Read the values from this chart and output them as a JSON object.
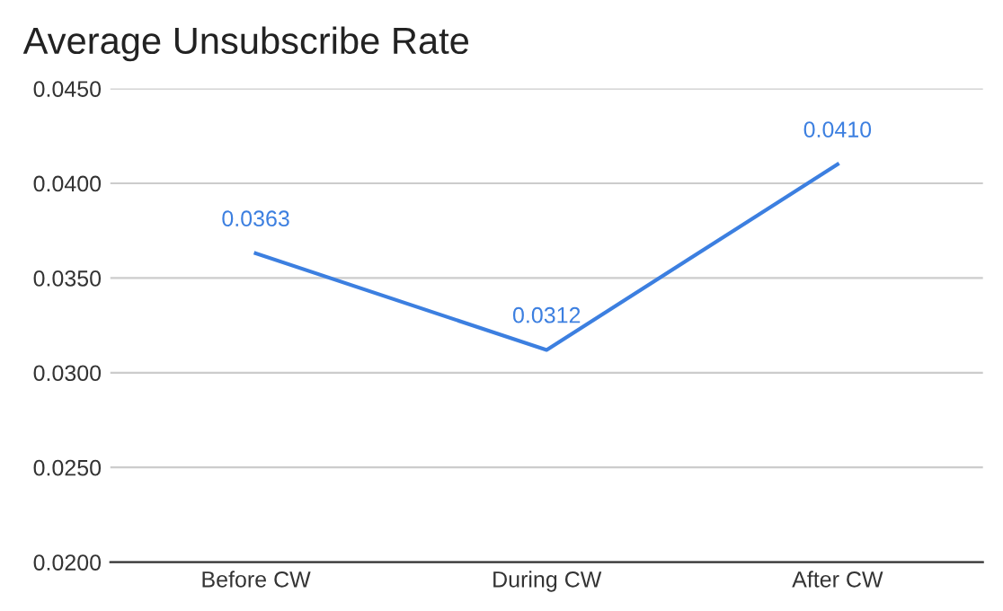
{
  "chart_data": {
    "type": "line",
    "title": "Average Unsubscribe Rate",
    "categories": [
      "Before CW",
      "During CW",
      "After CW"
    ],
    "series": [
      {
        "color": "#3c7fe0",
        "values": [
          0.0363,
          0.0312,
          0.041
        ],
        "value_labels": [
          "0.0363",
          "0.0312",
          "0.0410"
        ]
      }
    ],
    "ylim": [
      0.02,
      0.045
    ],
    "yticks": [
      {
        "value": 0.02,
        "label": "0.0200"
      },
      {
        "value": 0.025,
        "label": "0.0250"
      },
      {
        "value": 0.03,
        "label": "0.0300"
      },
      {
        "value": 0.035,
        "label": "0.0350"
      },
      {
        "value": 0.04,
        "label": "0.0400"
      },
      {
        "value": 0.045,
        "label": "0.0450"
      }
    ],
    "grid": "y",
    "marker": "none",
    "line_style": "solid",
    "legend": false
  }
}
